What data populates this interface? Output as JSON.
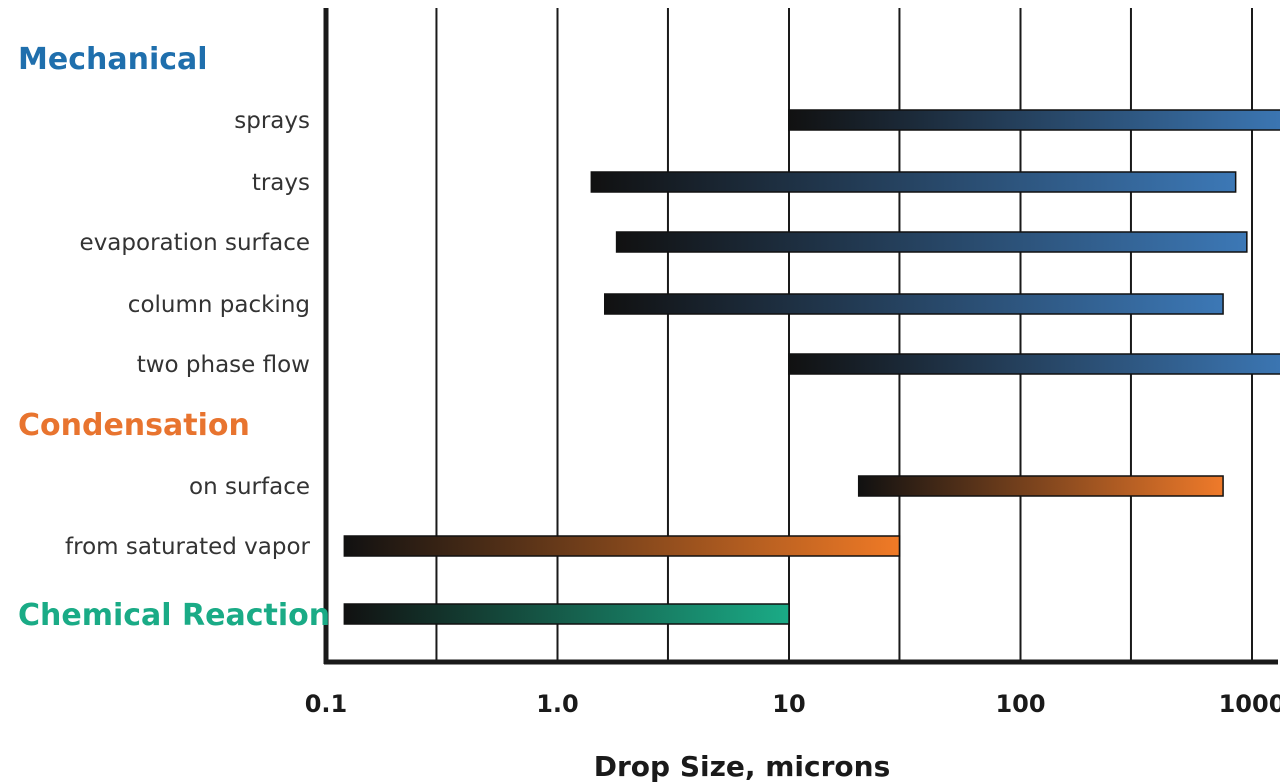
{
  "chart_data": {
    "type": "bar",
    "orientation": "horizontal-range",
    "x_scale": "log",
    "xlim": [
      0.1,
      1500
    ],
    "xlabel": "Drop Size, microns",
    "x_ticks": [
      {
        "value": 0.1,
        "label": "0.1"
      },
      {
        "value": 1,
        "label": "1.0"
      },
      {
        "value": 10,
        "label": "10"
      },
      {
        "value": 100,
        "label": "100"
      },
      {
        "value": 1000,
        "label": "1000"
      }
    ],
    "gridlines": [
      0.3,
      1,
      3,
      10,
      30,
      100,
      300,
      1000
    ],
    "rows": [
      {
        "kind": "group",
        "label": "Mechanical",
        "color": "#1f6fad"
      },
      {
        "kind": "bar",
        "label": "sprays",
        "min": 10,
        "max": 1500,
        "color": "#3c78b6"
      },
      {
        "kind": "bar",
        "label": "trays",
        "min": 1.4,
        "max": 850,
        "color": "#3c78b6"
      },
      {
        "kind": "bar",
        "label": "evaporation surface",
        "min": 1.8,
        "max": 950,
        "color": "#3c78b6"
      },
      {
        "kind": "bar",
        "label": "column packing",
        "min": 1.6,
        "max": 750,
        "color": "#3c78b6"
      },
      {
        "kind": "bar",
        "label": "two phase flow",
        "min": 10,
        "max": 1500,
        "color": "#3c78b6"
      },
      {
        "kind": "group",
        "label": "Condensation",
        "color": "#e8742f"
      },
      {
        "kind": "bar",
        "label": "on surface",
        "min": 20,
        "max": 750,
        "color": "#ef7a2a"
      },
      {
        "kind": "bar",
        "label": "from saturated vapor",
        "min": 0.12,
        "max": 30,
        "color": "#f07a26"
      },
      {
        "kind": "group-bar",
        "label": "Chemical Reaction",
        "min": 0.12,
        "max": 10,
        "color": "#1aab86"
      }
    ],
    "bar_start_color": "#111111",
    "grid": true,
    "legend": "none"
  }
}
